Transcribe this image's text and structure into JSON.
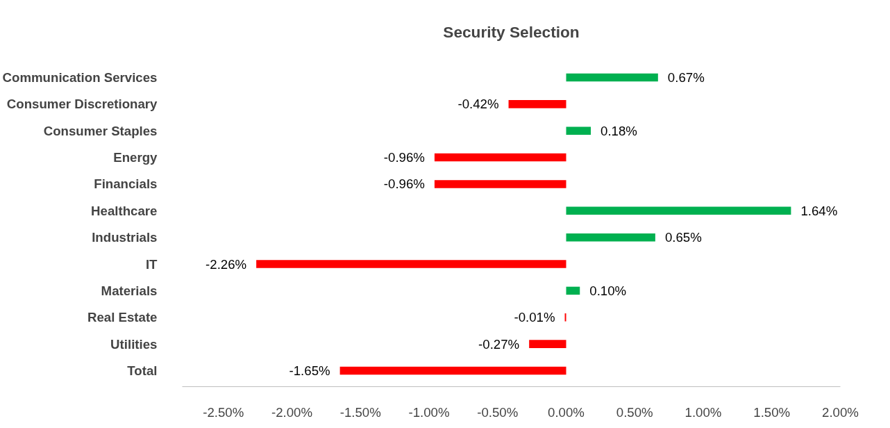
{
  "chart_data": {
    "type": "bar",
    "orientation": "horizontal",
    "title": "Security Selection",
    "categories": [
      "Communication Services",
      "Consumer Discretionary",
      "Consumer Staples",
      "Energy",
      "Financials",
      "Healthcare",
      "Industrials",
      "IT",
      "Materials",
      "Real Estate",
      "Utilities",
      "Total"
    ],
    "values": [
      0.67,
      -0.42,
      0.18,
      -0.96,
      -0.96,
      1.64,
      0.65,
      -2.26,
      0.1,
      -0.01,
      -0.27,
      -1.65
    ],
    "colors": [
      "#00b050",
      "#ff0000",
      "#00b050",
      "#ff0000",
      "#ff0000",
      "#00b050",
      "#00b050",
      "#ff0000",
      "#00b050",
      "#ff0000",
      "#ff0000",
      "#ff0000"
    ],
    "value_labels": [
      "0.67%",
      "-0.42%",
      "0.18%",
      "-0.96%",
      "-0.96%",
      "1.64%",
      "0.65%",
      "-2.26%",
      "0.10%",
      "-0.01%",
      "-0.27%",
      "-1.65%"
    ],
    "xlim": [
      -2.8,
      2.0
    ],
    "xticks": [
      {
        "value": -2.5,
        "label": "-2.50%"
      },
      {
        "value": -2.0,
        "label": "-2.00%"
      },
      {
        "value": -1.5,
        "label": "-1.50%"
      },
      {
        "value": -1.0,
        "label": "-1.00%"
      },
      {
        "value": -0.5,
        "label": "-0.50%"
      },
      {
        "value": 0,
        "label": "0.00%"
      },
      {
        "value": 0.5,
        "label": "0.50%"
      },
      {
        "value": 1.0,
        "label": "1.00%"
      },
      {
        "value": 1.5,
        "label": "1.50%"
      },
      {
        "value": 2.0,
        "label": "2.00%"
      }
    ],
    "grid": false
  }
}
